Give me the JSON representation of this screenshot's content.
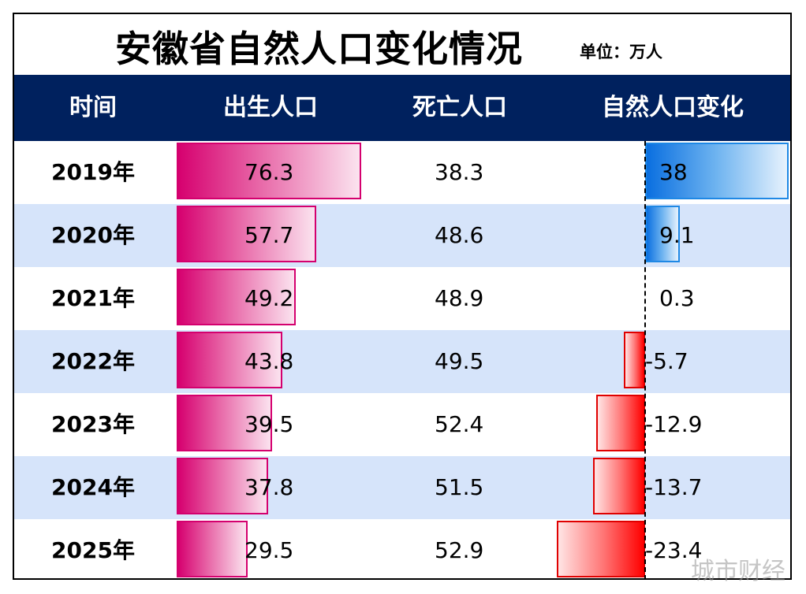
{
  "title": "安徽省自然人口变化情况",
  "unit": "单位：万人",
  "watermark": "城市财经",
  "colors": {
    "header_bg": "#00215E",
    "birth_bar": "#D6006F",
    "positive_bar": "#0A6FE0",
    "negative_bar": "#FF0000",
    "alt_row": "#D6E4FA"
  },
  "chart_data": {
    "type": "table",
    "columns": [
      "时间",
      "出生人口",
      "死亡人口",
      "自然人口变化"
    ],
    "rows": [
      {
        "year": "2019年",
        "birth": 76.3,
        "death": 38.3,
        "change": 38
      },
      {
        "year": "2020年",
        "birth": 57.7,
        "death": 48.6,
        "change": 9.1
      },
      {
        "year": "2021年",
        "birth": 49.2,
        "death": 48.9,
        "change": 0.3
      },
      {
        "year": "2022年",
        "birth": 43.8,
        "death": 49.5,
        "change": -5.7
      },
      {
        "year": "2023年",
        "birth": 39.5,
        "death": 52.4,
        "change": -12.9
      },
      {
        "year": "2024年",
        "birth": 37.8,
        "death": 51.5,
        "change": -13.7
      },
      {
        "year": "2025年",
        "birth": 29.5,
        "death": 52.9,
        "change": -23.4
      }
    ]
  }
}
